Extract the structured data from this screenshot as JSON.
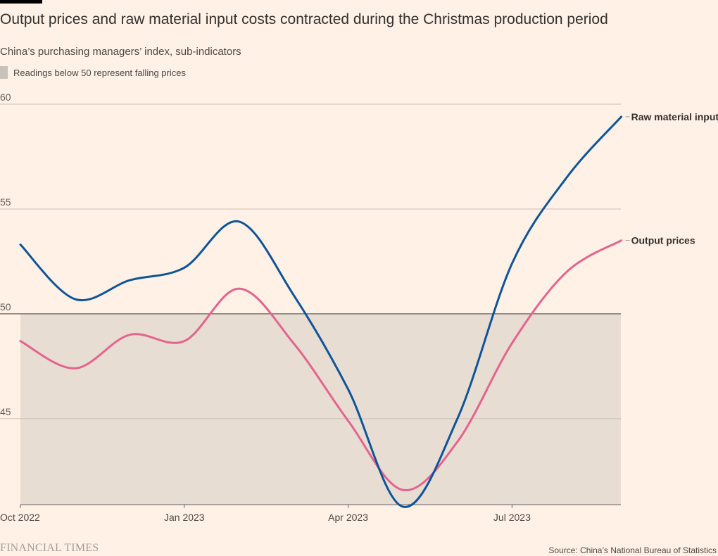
{
  "header": {
    "title": "Output prices and raw material input costs contracted during the Christmas production period",
    "subtitle": "China’s purchasing managers’ index, sub-indicators"
  },
  "legend": {
    "shading_label": "Readings below 50 represent falling prices"
  },
  "footer": {
    "brand": "FINANCIAL TIMES",
    "source": "Source: China’s National Bureau of Statistics"
  },
  "colors": {
    "background": "#fff1e5",
    "shading": "#e8ddd3",
    "raw_material": "#0f5499",
    "output": "#e3648f",
    "grid": "#c9c0b8",
    "baseline": "#66605c"
  },
  "chart_data": {
    "type": "line",
    "title": "Output prices and raw material input costs contracted during the Christmas production period",
    "subtitle": "China’s purchasing managers’ index, sub-indicators",
    "x": [
      "2022-10",
      "2022-11",
      "2022-12",
      "2023-01",
      "2023-02",
      "2023-03",
      "2023-04",
      "2023-05",
      "2023-06",
      "2023-07",
      "2023-08",
      "2023-09"
    ],
    "x_tick_labels": [
      "Oct 2022",
      "Jan 2023",
      "Apr 2023",
      "Jul 2023"
    ],
    "x_ticks": [
      "2022-10",
      "2023-01",
      "2023-04",
      "2023-07"
    ],
    "y_ticks": [
      45,
      50,
      55,
      60
    ],
    "ylim": [
      40.9,
      60
    ],
    "shaded_region": {
      "from": 40.9,
      "to": 50,
      "label": "Readings below 50 represent falling prices"
    },
    "series": [
      {
        "name": "Raw material inputs",
        "color": "#0f5499",
        "values": [
          53.3,
          50.7,
          51.6,
          52.2,
          54.4,
          50.9,
          46.4,
          40.8,
          45.0,
          52.4,
          56.5,
          59.4
        ]
      },
      {
        "name": "Output prices",
        "color": "#e3648f",
        "values": [
          48.7,
          47.4,
          49.0,
          48.7,
          51.2,
          48.6,
          44.9,
          41.6,
          43.9,
          48.6,
          52.0,
          53.5
        ]
      }
    ],
    "grid": true,
    "legend_position": "right-end labels"
  }
}
